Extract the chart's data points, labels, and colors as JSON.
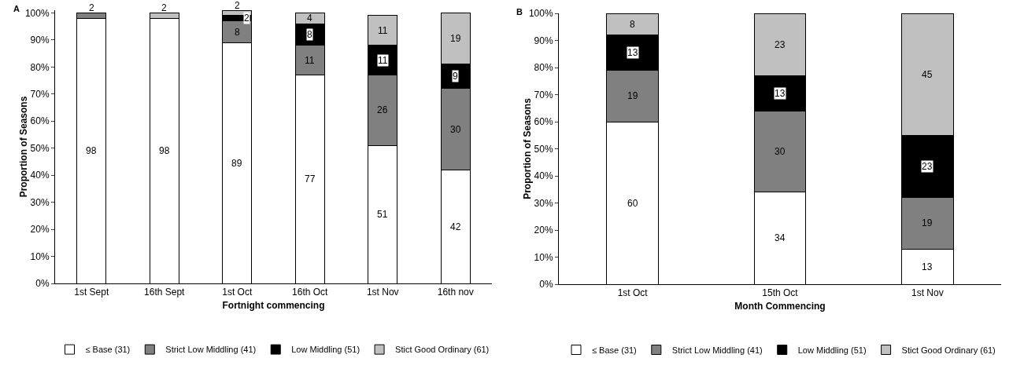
{
  "chart_data": [
    {
      "type": "bar",
      "stacked": true,
      "annotations": [
        "A"
      ],
      "xlabel": "Fortnight commencing",
      "ylabel": "Proportion of Seasons",
      "categories": [
        "1st Sept",
        "16th Sept",
        "1st Oct",
        "16th Oct",
        "1st Nov",
        "16th nov"
      ],
      "series": [
        {
          "name": "≤ Base (31)",
          "color": "#ffffff",
          "values": [
            98,
            98,
            89,
            77,
            51,
            42
          ]
        },
        {
          "name": "Strict Low Middling (41)",
          "color": "#808080",
          "values": [
            2,
            null,
            8,
            11,
            26,
            30
          ]
        },
        {
          "name": "Low Middling (51)",
          "color": "#000000",
          "values": [
            null,
            null,
            2,
            8,
            11,
            9
          ]
        },
        {
          "name": "Stict Good Ordinary (61)",
          "color": "#c0c0c0",
          "values": [
            null,
            2,
            2,
            4,
            11,
            19
          ]
        }
      ],
      "data_labels": true,
      "ylim": [
        0,
        101
      ],
      "yticks": [
        {
          "value": 0,
          "label": "0%"
        },
        {
          "value": 10,
          "label": "10%"
        },
        {
          "value": 20,
          "label": "20%"
        },
        {
          "value": 30,
          "label": "30%"
        },
        {
          "value": 40,
          "label": "40%"
        },
        {
          "value": 50,
          "label": "50%"
        },
        {
          "value": 60,
          "label": "60%"
        },
        {
          "value": 70,
          "label": "70%"
        },
        {
          "value": 80,
          "label": "80%"
        },
        {
          "value": 90,
          "label": "90%"
        },
        {
          "value": 100,
          "label": "100%"
        }
      ],
      "grid": false,
      "legend": "bottom"
    },
    {
      "type": "bar",
      "stacked": true,
      "annotations": [
        "B"
      ],
      "xlabel": "Month Commencing",
      "ylabel": "Proportion of Seasons",
      "categories": [
        "1st Oct",
        "15th Oct",
        "1st Nov"
      ],
      "series": [
        {
          "name": "≤ Base (31)",
          "color": "#ffffff",
          "values": [
            60,
            34,
            13
          ]
        },
        {
          "name": "Strict Low Middling (41)",
          "color": "#808080",
          "values": [
            19,
            30,
            19
          ]
        },
        {
          "name": "Low Middling (51)",
          "color": "#000000",
          "values": [
            13,
            13,
            23
          ]
        },
        {
          "name": "Stict Good Ordinary (61)",
          "color": "#c0c0c0",
          "values": [
            8,
            23,
            45
          ]
        }
      ],
      "data_labels": true,
      "ylim": [
        0,
        100
      ],
      "yticks": [
        {
          "value": 0,
          "label": "0%"
        },
        {
          "value": 10,
          "label": "10%"
        },
        {
          "value": 20,
          "label": "20%"
        },
        {
          "value": 30,
          "label": "30%"
        },
        {
          "value": 40,
          "label": "40%"
        },
        {
          "value": 50,
          "label": "50%"
        },
        {
          "value": 60,
          "label": "60%"
        },
        {
          "value": 70,
          "label": "70%"
        },
        {
          "value": 80,
          "label": "80%"
        },
        {
          "value": 90,
          "label": "90%"
        },
        {
          "value": 100,
          "label": "100%"
        }
      ],
      "grid": false,
      "legend": "bottom"
    }
  ]
}
